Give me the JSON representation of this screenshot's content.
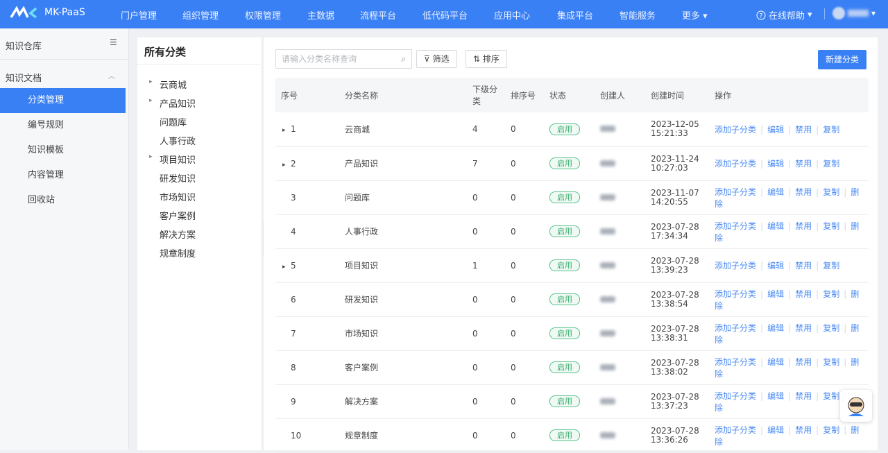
{
  "header": {
    "logo": "MK-PaaS",
    "nav": [
      "门户管理",
      "组织管理",
      "权限管理",
      "主数据",
      "流程平台",
      "低代码平台",
      "应用中心",
      "集成平台",
      "智能服务"
    ],
    "more": "更多",
    "help": "在线帮助"
  },
  "sidebar": {
    "title": "知识仓库",
    "group": "知识文档",
    "items": [
      "分类管理",
      "编号规则",
      "知识模板",
      "内容管理",
      "回收站"
    ],
    "active": 0
  },
  "tree": {
    "title": "所有分类",
    "nodes": [
      {
        "label": "云商城",
        "expandable": true
      },
      {
        "label": "产品知识",
        "expandable": true
      },
      {
        "label": "问题库",
        "expandable": false
      },
      {
        "label": "人事行政",
        "expandable": false
      },
      {
        "label": "项目知识",
        "expandable": true
      },
      {
        "label": "研发知识",
        "expandable": false
      },
      {
        "label": "市场知识",
        "expandable": false
      },
      {
        "label": "客户案例",
        "expandable": false
      },
      {
        "label": "解决方案",
        "expandable": false
      },
      {
        "label": "规章制度",
        "expandable": false
      }
    ]
  },
  "toolbar": {
    "search_placeholder": "请输入分类名称查询",
    "filter": "筛选",
    "sort": "排序",
    "create": "新建分类"
  },
  "table": {
    "columns": [
      "序号",
      "分类名称",
      "下级分类",
      "排序号",
      "状态",
      "创建人",
      "创建时间",
      "操作"
    ],
    "rows": [
      {
        "index": 1,
        "expandable": true,
        "name": "云商城",
        "children": 4,
        "order": 0,
        "status": "启用",
        "created_date": "2023-12-05",
        "created_time": "15:21:33",
        "actions": [
          "添加子分类",
          "编辑",
          "禁用",
          "复制"
        ]
      },
      {
        "index": 2,
        "expandable": true,
        "name": "产品知识",
        "children": 7,
        "order": 0,
        "status": "启用",
        "created_date": "2023-11-24",
        "created_time": "10:27:03",
        "actions": [
          "添加子分类",
          "编辑",
          "禁用",
          "复制"
        ]
      },
      {
        "index": 3,
        "expandable": false,
        "name": "问题库",
        "children": 0,
        "order": 0,
        "status": "启用",
        "created_date": "2023-11-07",
        "created_time": "14:20:55",
        "actions": [
          "添加子分类",
          "编辑",
          "禁用",
          "复制",
          "删除"
        ]
      },
      {
        "index": 4,
        "expandable": false,
        "name": "人事行政",
        "children": 0,
        "order": 0,
        "status": "启用",
        "created_date": "2023-07-28",
        "created_time": "17:34:34",
        "actions": [
          "添加子分类",
          "编辑",
          "禁用",
          "复制",
          "删除"
        ]
      },
      {
        "index": 5,
        "expandable": true,
        "name": "项目知识",
        "children": 1,
        "order": 0,
        "status": "启用",
        "created_date": "2023-07-28",
        "created_time": "13:39:23",
        "actions": [
          "添加子分类",
          "编辑",
          "禁用",
          "复制"
        ]
      },
      {
        "index": 6,
        "expandable": false,
        "name": "研发知识",
        "children": 0,
        "order": 0,
        "status": "启用",
        "created_date": "2023-07-28",
        "created_time": "13:38:54",
        "actions": [
          "添加子分类",
          "编辑",
          "禁用",
          "复制",
          "删除"
        ]
      },
      {
        "index": 7,
        "expandable": false,
        "name": "市场知识",
        "children": 0,
        "order": 0,
        "status": "启用",
        "created_date": "2023-07-28",
        "created_time": "13:38:31",
        "actions": [
          "添加子分类",
          "编辑",
          "禁用",
          "复制",
          "删除"
        ]
      },
      {
        "index": 8,
        "expandable": false,
        "name": "客户案例",
        "children": 0,
        "order": 0,
        "status": "启用",
        "created_date": "2023-07-28",
        "created_time": "13:38:02",
        "actions": [
          "添加子分类",
          "编辑",
          "禁用",
          "复制",
          "删除"
        ]
      },
      {
        "index": 9,
        "expandable": false,
        "name": "解决方案",
        "children": 0,
        "order": 0,
        "status": "启用",
        "created_date": "2023-07-28",
        "created_time": "13:37:23",
        "actions": [
          "添加子分类",
          "编辑",
          "禁用",
          "复制",
          "删除"
        ]
      },
      {
        "index": 10,
        "expandable": false,
        "name": "规章制度",
        "children": 0,
        "order": 0,
        "status": "启用",
        "created_date": "2023-07-28",
        "created_time": "13:36:26",
        "actions": [
          "添加子分类",
          "编辑",
          "禁用",
          "复制",
          "删除"
        ]
      }
    ]
  }
}
